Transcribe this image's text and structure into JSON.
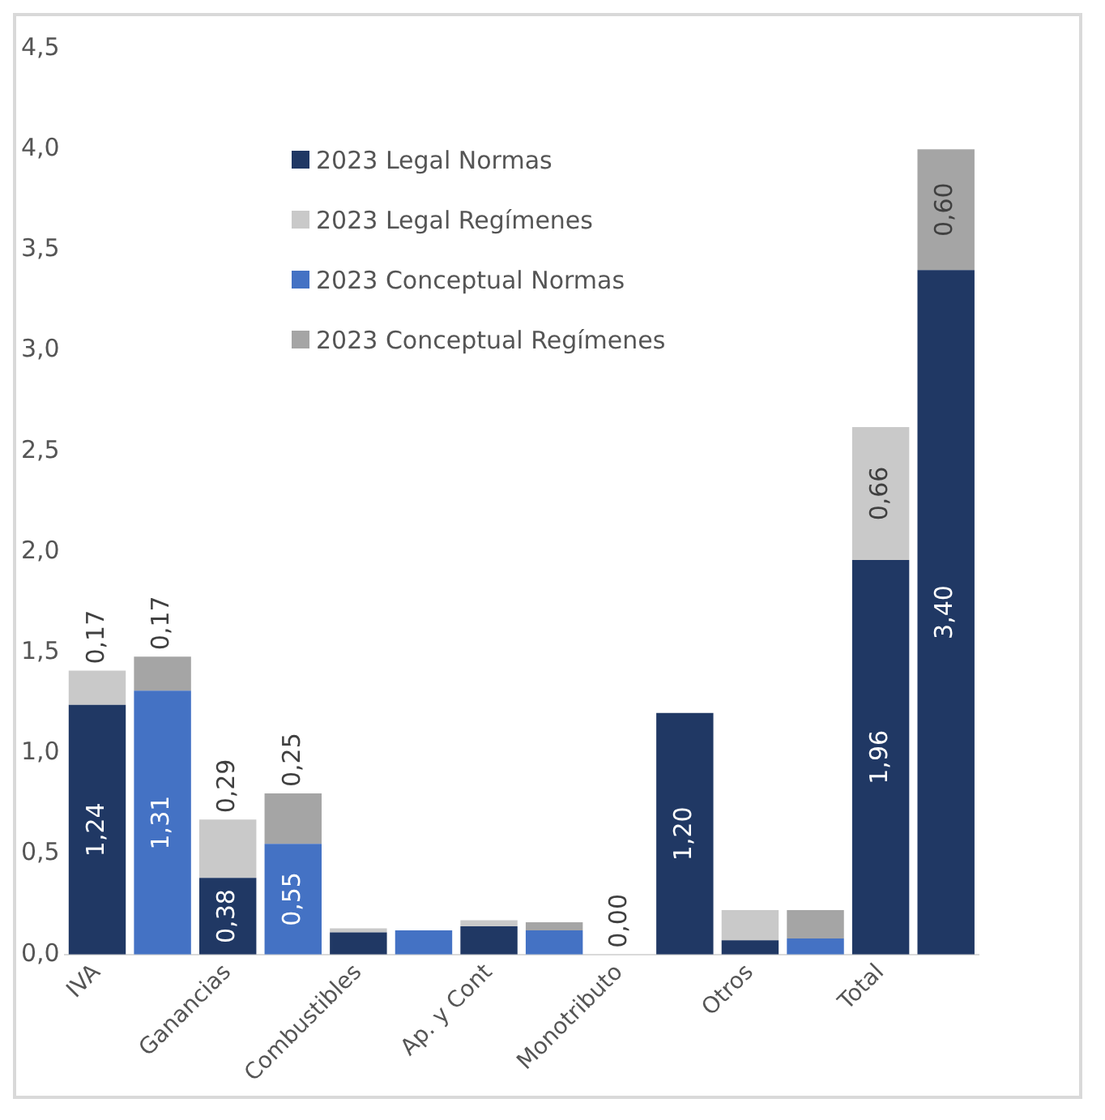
{
  "chart_data": {
    "type": "bar",
    "stacked": true,
    "categories": [
      "IVA",
      null,
      "Ganancias",
      null,
      "Combustibles",
      null,
      "Ap. y Cont",
      null,
      "Monotributo",
      null,
      "Otros",
      null,
      "Total",
      null
    ],
    "series": [
      {
        "name": "2023 Legal Normas",
        "color": "#203864",
        "values": [
          1.24,
          null,
          0.38,
          null,
          0.11,
          null,
          0.14,
          null,
          0.0,
          null,
          0.07,
          null,
          1.96,
          null
        ],
        "value_labels": [
          "1,24",
          null,
          "0,38",
          null,
          null,
          null,
          null,
          null,
          "0,00",
          null,
          null,
          null,
          "1,96",
          null
        ]
      },
      {
        "name": "2023 Legal Regímenes",
        "color": "#c9c9c9",
        "values": [
          0.17,
          null,
          0.29,
          null,
          0.02,
          null,
          0.03,
          null,
          0.0,
          null,
          0.15,
          null,
          0.66,
          null
        ],
        "value_labels": [
          "0,17",
          null,
          "0,29",
          null,
          null,
          null,
          null,
          null,
          null,
          null,
          null,
          null,
          "0,66",
          null
        ]
      },
      {
        "name": "2023 Conceptual Normas",
        "color": "#4472c4",
        "colors": [
          "#4472c4",
          "#4472c4",
          "#4472c4",
          "#4472c4",
          "#4472c4",
          "#4472c4",
          "#4472c4",
          "#4472c4",
          "#203864",
          "#203864",
          "#4472c4",
          "#4472c4",
          "#203864",
          "#203864"
        ],
        "values": [
          null,
          1.31,
          null,
          0.55,
          null,
          0.12,
          null,
          0.12,
          null,
          1.2,
          null,
          0.08,
          null,
          3.4
        ],
        "value_labels": [
          null,
          "1,31",
          null,
          "0,55",
          null,
          null,
          null,
          null,
          null,
          "1,20",
          null,
          null,
          null,
          "3,40"
        ]
      },
      {
        "name": "2023 Conceptual Regímenes",
        "color": "#a5a5a5",
        "values": [
          null,
          0.17,
          null,
          0.25,
          null,
          0.0,
          null,
          0.04,
          null,
          0.0,
          null,
          0.14,
          null,
          0.6
        ],
        "value_labels": [
          null,
          "0,17",
          null,
          "0,25",
          null,
          null,
          null,
          null,
          null,
          null,
          null,
          null,
          null,
          "0,60"
        ]
      }
    ],
    "ylim": [
      0,
      4.5
    ],
    "yticks": [
      {
        "value": 0,
        "label": "0,0"
      },
      {
        "value": 0.5,
        "label": "0,5"
      },
      {
        "value": 1,
        "label": "1,0"
      },
      {
        "value": 1.5,
        "label": "1,5"
      },
      {
        "value": 2,
        "label": "2,0"
      },
      {
        "value": 2.5,
        "label": "2,5"
      },
      {
        "value": 3,
        "label": "3,0"
      },
      {
        "value": 3.5,
        "label": "3,5"
      },
      {
        "value": 4,
        "label": "4,0"
      },
      {
        "value": 4.5,
        "label": "4,5"
      }
    ],
    "grid": false,
    "legend": "top"
  }
}
